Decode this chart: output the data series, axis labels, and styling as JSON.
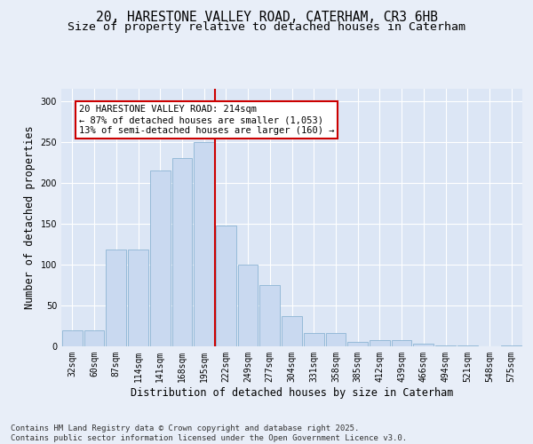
{
  "title_line1": "20, HARESTONE VALLEY ROAD, CATERHAM, CR3 6HB",
  "title_line2": "Size of property relative to detached houses in Caterham",
  "xlabel": "Distribution of detached houses by size in Caterham",
  "ylabel": "Number of detached properties",
  "categories": [
    "32sqm",
    "60sqm",
    "87sqm",
    "114sqm",
    "141sqm",
    "168sqm",
    "195sqm",
    "222sqm",
    "249sqm",
    "277sqm",
    "304sqm",
    "331sqm",
    "358sqm",
    "385sqm",
    "412sqm",
    "439sqm",
    "466sqm",
    "494sqm",
    "521sqm",
    "548sqm",
    "575sqm"
  ],
  "values": [
    20,
    20,
    118,
    118,
    215,
    230,
    250,
    148,
    100,
    75,
    37,
    16,
    16,
    5,
    8,
    8,
    3,
    1,
    1,
    0,
    1
  ],
  "bar_color": "#c9d9f0",
  "bar_edge_color": "#8cb4d4",
  "vline_color": "#cc0000",
  "vline_index": 7,
  "annotation_text": "20 HARESTONE VALLEY ROAD: 214sqm\n← 87% of detached houses are smaller (1,053)\n13% of semi-detached houses are larger (160) →",
  "annotation_box_facecolor": "#ffffff",
  "annotation_box_edgecolor": "#cc0000",
  "ylim": [
    0,
    315
  ],
  "yticks": [
    0,
    50,
    100,
    150,
    200,
    250,
    300
  ],
  "fig_bg_color": "#e8eef8",
  "plot_bg_color": "#dce6f5",
  "footer_text": "Contains HM Land Registry data © Crown copyright and database right 2025.\nContains public sector information licensed under the Open Government Licence v3.0.",
  "title_fontsize": 10.5,
  "subtitle_fontsize": 9.5,
  "tick_fontsize": 7,
  "label_fontsize": 8.5,
  "annot_fontsize": 7.5,
  "footer_fontsize": 6.5
}
